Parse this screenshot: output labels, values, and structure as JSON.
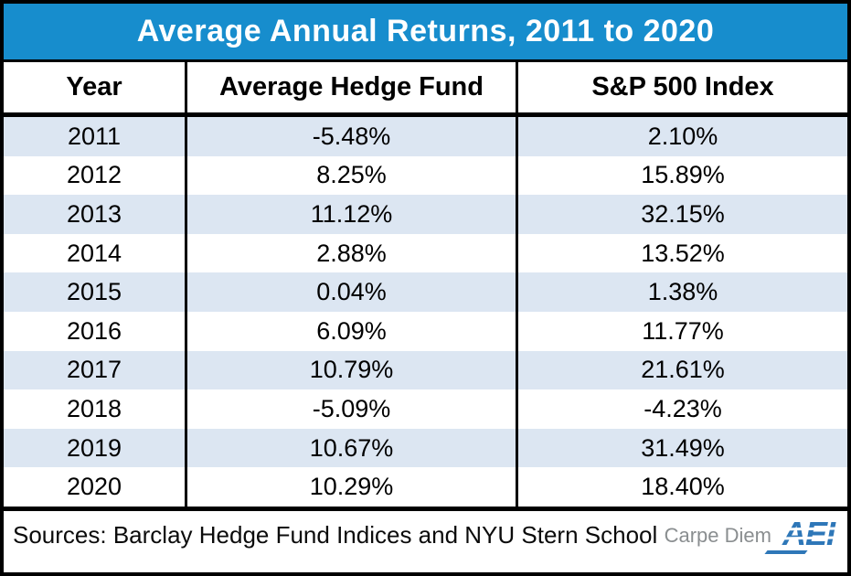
{
  "title": "Average Annual Returns, 2011 to 2020",
  "table": {
    "columns": [
      "Year",
      "Average Hedge Fund",
      "S&P 500 Index"
    ],
    "rows": [
      [
        "2011",
        "-5.48%",
        "2.10%"
      ],
      [
        "2012",
        "8.25%",
        "15.89%"
      ],
      [
        "2013",
        "11.12%",
        "32.15%"
      ],
      [
        "2014",
        "2.88%",
        "13.52%"
      ],
      [
        "2015",
        "0.04%",
        "1.38%"
      ],
      [
        "2016",
        "6.09%",
        "11.77%"
      ],
      [
        "2017",
        "10.79%",
        "21.61%"
      ],
      [
        "2018",
        "-5.09%",
        "-4.23%"
      ],
      [
        "2019",
        "10.67%",
        "31.49%"
      ],
      [
        "2020",
        "10.29%",
        "18.40%"
      ]
    ]
  },
  "footer": {
    "sources": "Sources: Barclay Hedge Fund Indices and NYU Stern School",
    "brand": "Carpe Diem",
    "logo_text": "AEI"
  },
  "colors": {
    "title_bg": "#178DCD",
    "row_stripe": "#DCE6F2",
    "logo_blue": "#2E77B8",
    "brand_gray": "#8A8E90",
    "border_black": "#000000"
  },
  "chart_data": {
    "type": "table",
    "title": "Average Annual Returns, 2011 to 2020",
    "columns": [
      "Year",
      "Average Hedge Fund",
      "S&P 500 Index"
    ],
    "categories": [
      2011,
      2012,
      2013,
      2014,
      2015,
      2016,
      2017,
      2018,
      2019,
      2020
    ],
    "series": [
      {
        "name": "Average Hedge Fund",
        "values": [
          -5.48,
          8.25,
          11.12,
          2.88,
          0.04,
          6.09,
          10.79,
          -5.09,
          10.67,
          10.29
        ]
      },
      {
        "name": "S&P 500 Index",
        "values": [
          2.1,
          15.89,
          32.15,
          13.52,
          1.38,
          11.77,
          21.61,
          -4.23,
          31.49,
          18.4
        ]
      }
    ],
    "unit": "%",
    "notes": "Sources: Barclay Hedge Fund Indices and NYU Stern School"
  }
}
